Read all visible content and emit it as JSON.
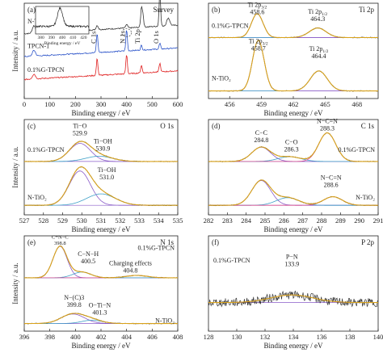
{
  "panels": [
    {
      "id": "a",
      "letter": "(a)",
      "title": "Survey",
      "type": "line",
      "xlabel": "Binding energy / eV",
      "ylabel": "Intensity / a.u.",
      "xlim": [
        0,
        600
      ],
      "ylim": [
        0,
        10
      ],
      "xticks": [
        0,
        100,
        200,
        300,
        400,
        500,
        600
      ],
      "series": [
        {
          "name": "N-TiO2",
          "label": "N-TiO₂",
          "color": "#333333",
          "offset": 6.8,
          "peaks": [
            [
              38,
              0.8,
              6
            ],
            [
              285,
              0.45,
              4
            ],
            [
              400,
              0.35,
              4
            ],
            [
              458,
              2.0,
              3
            ],
            [
              464,
              1.2,
              3
            ],
            [
              530,
              3.5,
              3
            ],
            [
              563,
              0.8,
              6
            ]
          ]
        },
        {
          "name": "TPCN-1",
          "label": "TPCN-1",
          "color": "#2c54c9",
          "offset": 4.4,
          "peaks": [
            [
              38,
              0.6,
              6
            ],
            [
              285,
              2.0,
              3
            ],
            [
              400,
              2.2,
              3
            ],
            [
              458,
              0.5,
              3
            ],
            [
              530,
              0.6,
              3
            ]
          ]
        },
        {
          "name": "0.1%G-TPCN",
          "label": "0.1%G-TPCN",
          "color": "#e02222",
          "offset": 2.0,
          "peaks": [
            [
              38,
              0.5,
              6
            ],
            [
              285,
              1.8,
              3
            ],
            [
              400,
              2.0,
              3
            ],
            [
              458,
              0.8,
              3
            ],
            [
              530,
              0.9,
              3
            ]
          ]
        }
      ],
      "peak_labels": [
        {
          "text": "C 1s",
          "x": 285
        },
        {
          "text": "N 1s",
          "x": 400
        },
        {
          "text": "Ti 2p",
          "x": 458
        },
        {
          "text": "O 1s",
          "x": 530
        }
      ],
      "inset": {
        "xticks": [
          380,
          390,
          400,
          410,
          420
        ],
        "xlabel": "Binding energy / eV",
        "xlim": [
          375,
          425
        ],
        "peak": [
          398,
          0.6,
          2.5
        ]
      }
    },
    {
      "id": "b",
      "letter": "(b)",
      "title": "Ti 2p",
      "type": "line",
      "xlabel": "Binding energy / eV",
      "ylabel": "",
      "xlim": [
        454,
        470
      ],
      "ylim": [
        0,
        10
      ],
      "xticks": [
        456,
        459,
        462,
        465,
        468
      ],
      "series": [
        {
          "name": "0.1%G-TPCN",
          "label": "0.1%G-TPCN",
          "color": "#333333",
          "offset": 6.4,
          "peaks": [
            [
              458.6,
              2.5,
              0.55
            ],
            [
              464.3,
              1.0,
              0.8
            ]
          ]
        },
        {
          "name": "N-TiO2",
          "label": "N-TiO₂",
          "color": "#333333",
          "offset": 0.8,
          "peaks": [
            [
              458.7,
              5.3,
              0.55
            ],
            [
              464.4,
              2.1,
              0.8
            ]
          ]
        }
      ],
      "annotations": [
        {
          "main": "Ti 2p",
          "sub": "3/2",
          "value": "458.6",
          "x": 458.6,
          "y": 9.6
        },
        {
          "main": "Ti 2p",
          "sub": "1/2",
          "value": "464.3",
          "x": 464.3,
          "y": 8.9
        },
        {
          "main": "Ti 2p",
          "sub": "3/2",
          "value": "458.7",
          "x": 458.7,
          "y": 5.8
        },
        {
          "main": "Ti 2p",
          "sub": "1/2",
          "value": "464.4",
          "x": 464.4,
          "y": 5.0
        }
      ]
    },
    {
      "id": "c",
      "letter": "(c)",
      "title": "O 1s",
      "type": "line",
      "xlabel": "Binding energy / eV",
      "ylabel": "Intensity / a.u.",
      "xlim": [
        527,
        535
      ],
      "ylim": [
        0,
        10
      ],
      "xticks": [
        527,
        528,
        529,
        530,
        531,
        532,
        533,
        534,
        535
      ],
      "series": [
        {
          "name": "0.1%G-TPCN",
          "label": "0.1%G-TPCN",
          "color": "#333333",
          "offset": 5.6,
          "peaks": [
            [
              529.9,
              1.9,
              0.55
            ],
            [
              530.9,
              0.55,
              0.7
            ]
          ]
        },
        {
          "name": "N-TiO2",
          "label": "N-TiO₂",
          "color": "#333333",
          "offset": 1.0,
          "peaks": [
            [
              529.9,
              3.6,
              0.55
            ],
            [
              531.0,
              1.2,
              0.75
            ]
          ]
        }
      ],
      "annotations": [
        {
          "main": "Ti−O",
          "value": "529.9",
          "x": 529.9,
          "y": 9.1
        },
        {
          "main": "Ti−OH",
          "value": "530.9",
          "x": 531.1,
          "y": 7.5
        },
        {
          "main": "Ti−OH",
          "value": "531.0",
          "x": 531.3,
          "y": 4.5
        }
      ]
    },
    {
      "id": "d",
      "letter": "(d)",
      "title": "C 1s",
      "type": "line",
      "xlabel": "Binding energy / eV",
      "ylabel": "",
      "xlim": [
        282,
        291
      ],
      "ylim": [
        0,
        10
      ],
      "xticks": [
        282,
        283,
        284,
        285,
        286,
        287,
        288,
        289,
        290,
        291
      ],
      "series": [
        {
          "name": "0.1%G-TPCN",
          "label": "0.1%G-TPCN",
          "color": "#333333",
          "offset": 5.6,
          "peaks": [
            [
              284.8,
              1.5,
              0.5
            ],
            [
              286.3,
              0.5,
              0.6
            ],
            [
              288.3,
              3.0,
              0.45
            ]
          ]
        },
        {
          "name": "N-TiO2",
          "label": "N-TiO₂",
          "color": "#333333",
          "offset": 1.0,
          "peaks": [
            [
              284.8,
              2.6,
              0.5
            ],
            [
              286.2,
              0.8,
              0.6
            ],
            [
              288.6,
              0.9,
              0.5
            ]
          ]
        }
      ],
      "annotations": [
        {
          "main": "N−C=N",
          "value": "288.3",
          "x": 288.3,
          "y": 9.6
        },
        {
          "main": "C−C",
          "value": "284.8",
          "x": 284.8,
          "y": 8.4
        },
        {
          "main": "C−O",
          "value": "286.3",
          "x": 286.4,
          "y": 7.4
        },
        {
          "main": "N−C=N",
          "value": "288.6",
          "x": 288.5,
          "y": 3.7
        }
      ]
    },
    {
      "id": "e",
      "letter": "(e)",
      "title": "N 1s",
      "type": "line",
      "xlabel": "Binding energy / eV",
      "ylabel": "Intensity / a.u.",
      "xlim": [
        396,
        408
      ],
      "ylim": [
        0,
        10
      ],
      "xticks": [
        396,
        398,
        400,
        402,
        404,
        406,
        408
      ],
      "series": [
        {
          "name": "0.1%G-TPCN",
          "label": "0.1%G-TPCN",
          "color": "#333333",
          "offset": 5.6,
          "peaks": [
            [
              398.8,
              3.3,
              0.55
            ],
            [
              400.5,
              0.6,
              0.7
            ],
            [
              404.8,
              0.25,
              0.8
            ]
          ]
        },
        {
          "name": "N-TiO2",
          "label": "N-TiO₂",
          "color": "#333333",
          "offset": 0.8,
          "peaks": [
            [
              399.8,
              1.0,
              0.9
            ],
            [
              401.3,
              0.35,
              0.8
            ]
          ]
        }
      ],
      "annotations": [
        {
          "main": "C=N−C",
          "value": "398.8",
          "x": 398.8,
          "y": 9.7,
          "small": true
        },
        {
          "main": "C−N−H",
          "value": "400.5",
          "x": 401.0,
          "y": 7.9
        },
        {
          "main": "Charging effects",
          "value": "404.8",
          "x": 404.3,
          "y": 6.9
        },
        {
          "main": "N−(C)3",
          "value": "399.8",
          "x": 399.9,
          "y": 3.3
        },
        {
          "main": "O−Ti−N",
          "value": "401.3",
          "x": 401.9,
          "y": 2.5
        }
      ]
    },
    {
      "id": "f",
      "letter": "(f)",
      "title": "P 2p",
      "type": "line",
      "xlabel": "Binding energy / eV",
      "ylabel": "",
      "xlim": [
        128,
        140
      ],
      "ylim": [
        0,
        10
      ],
      "xticks": [
        128,
        130,
        132,
        134,
        136,
        138,
        140
      ],
      "series": [
        {
          "name": "0.1%G-TPCN",
          "label": "0.1%G-TPCN",
          "color": "#333333",
          "offset": 3.0,
          "peaks": [
            [
              133.9,
              0.8,
              1.5
            ]
          ]
        }
      ],
      "annotations": [
        {
          "main": "P−N",
          "value": "133.9",
          "x": 133.9,
          "y": 7.6
        }
      ]
    }
  ]
}
